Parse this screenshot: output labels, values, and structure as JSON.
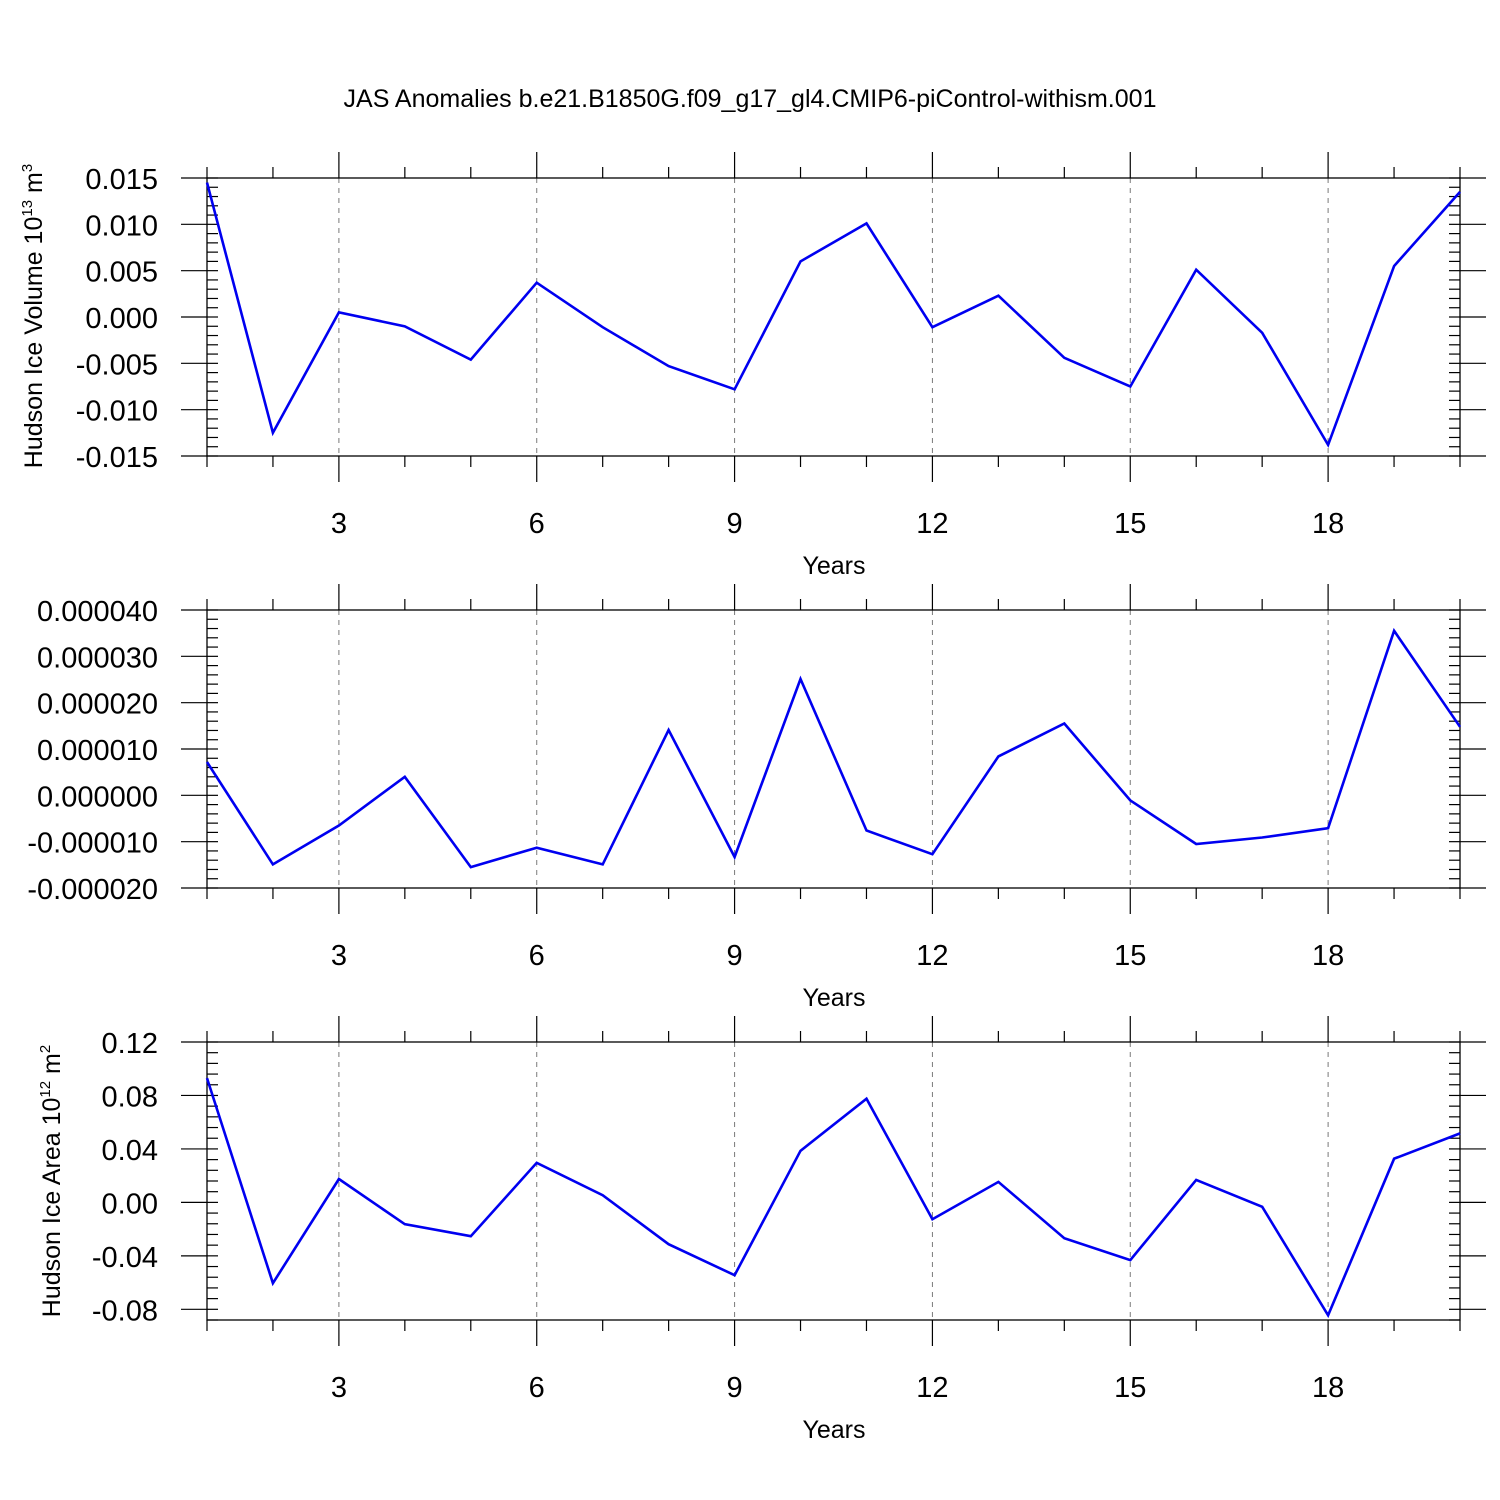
{
  "title": "JAS Anomalies b.e21.B1850G.f09_g17_gl4.CMIP6-piControl-withism.001",
  "chart_data": [
    {
      "type": "line",
      "xlabel": "Years",
      "ylabel": {
        "text": "Hudson Ice Volume 10",
        "sup": "13",
        "unit": " m",
        "unit_sup": "3"
      },
      "xlim": [
        1,
        20
      ],
      "ylim": [
        -0.015,
        0.015
      ],
      "x_major_ticks": [
        3,
        6,
        9,
        12,
        15,
        18
      ],
      "x_tick_labels": [
        "3",
        "6",
        "9",
        "12",
        "15",
        "18"
      ],
      "y_major_ticks": [
        -0.015,
        -0.01,
        -0.005,
        0,
        0.005,
        0.01,
        0.015
      ],
      "y_tick_labels": [
        "-0.015",
        "-0.010",
        "-0.005",
        "0.000",
        "0.005",
        "0.010",
        "0.015"
      ],
      "y_minor_step": 0.001,
      "line_color": "#0000f0",
      "x": [
        1,
        2,
        3,
        4,
        5,
        6,
        7,
        8,
        9,
        10,
        11,
        12,
        13,
        14,
        15,
        16,
        17,
        18,
        19,
        20
      ],
      "values": [
        0.0145,
        -0.0125,
        0.0005,
        -0.001,
        -0.0046,
        0.0037,
        -0.0011,
        -0.0053,
        -0.0078,
        0.006,
        0.0101,
        -0.0011,
        0.0023,
        -0.0044,
        -0.0075,
        0.0051,
        -0.0017,
        -0.0138,
        0.0055,
        0.0135
      ]
    },
    {
      "type": "line",
      "xlabel": "Years",
      "ylabel": null,
      "xlim": [
        1,
        20
      ],
      "ylim": [
        -2e-05,
        4e-05
      ],
      "x_major_ticks": [
        3,
        6,
        9,
        12,
        15,
        18
      ],
      "x_tick_labels": [
        "3",
        "6",
        "9",
        "12",
        "15",
        "18"
      ],
      "y_major_ticks": [
        -2e-05,
        -1e-05,
        0,
        1e-05,
        2e-05,
        3e-05,
        4e-05
      ],
      "y_tick_labels": [
        "-0.000020",
        "-0.000010",
        "0.000000",
        "0.000010",
        "0.000020",
        "0.000030",
        "0.000040"
      ],
      "y_minor_step": 2e-06,
      "line_color": "#0000f0",
      "x": [
        1,
        2,
        3,
        4,
        5,
        6,
        7,
        8,
        9,
        10,
        11,
        12,
        13,
        14,
        15,
        16,
        17,
        18,
        19,
        20
      ],
      "values": [
        7.2e-06,
        -1.49e-05,
        -6.5e-06,
        4e-06,
        -1.55e-05,
        -1.13e-05,
        -1.49e-05,
        1.41e-05,
        -1.33e-05,
        2.51e-05,
        -7.6e-06,
        -1.27e-05,
        8.4e-06,
        1.55e-05,
        -1.1e-06,
        -1.05e-05,
        -9.1e-06,
        -7.1e-06,
        3.55e-05,
        1.48e-05
      ]
    },
    {
      "type": "line",
      "xlabel": "Years",
      "ylabel": {
        "text": "Hudson Ice Area 10",
        "sup": "12",
        "unit": " m",
        "unit_sup": "2"
      },
      "xlim": [
        1,
        20
      ],
      "ylim": [
        -0.088,
        0.12
      ],
      "x_major_ticks": [
        3,
        6,
        9,
        12,
        15,
        18
      ],
      "x_tick_labels": [
        "3",
        "6",
        "9",
        "12",
        "15",
        "18"
      ],
      "y_major_ticks": [
        -0.08,
        -0.04,
        0,
        0.04,
        0.08,
        0.12
      ],
      "y_tick_labels": [
        "-0.08",
        "-0.04",
        "0.00",
        "0.04",
        "0.08",
        "0.12"
      ],
      "y_minor_step": 0.008,
      "line_color": "#0000f0",
      "x": [
        1,
        2,
        3,
        4,
        5,
        6,
        7,
        8,
        9,
        10,
        11,
        12,
        13,
        14,
        15,
        16,
        17,
        18,
        19,
        20
      ],
      "values": [
        0.093,
        -0.0605,
        0.0175,
        -0.0163,
        -0.0253,
        0.0296,
        0.0054,
        -0.0313,
        -0.0545,
        0.0386,
        0.0776,
        -0.0126,
        0.0153,
        -0.0268,
        -0.0432,
        0.0168,
        -0.0033,
        -0.0845,
        0.0327,
        0.0516
      ]
    }
  ]
}
